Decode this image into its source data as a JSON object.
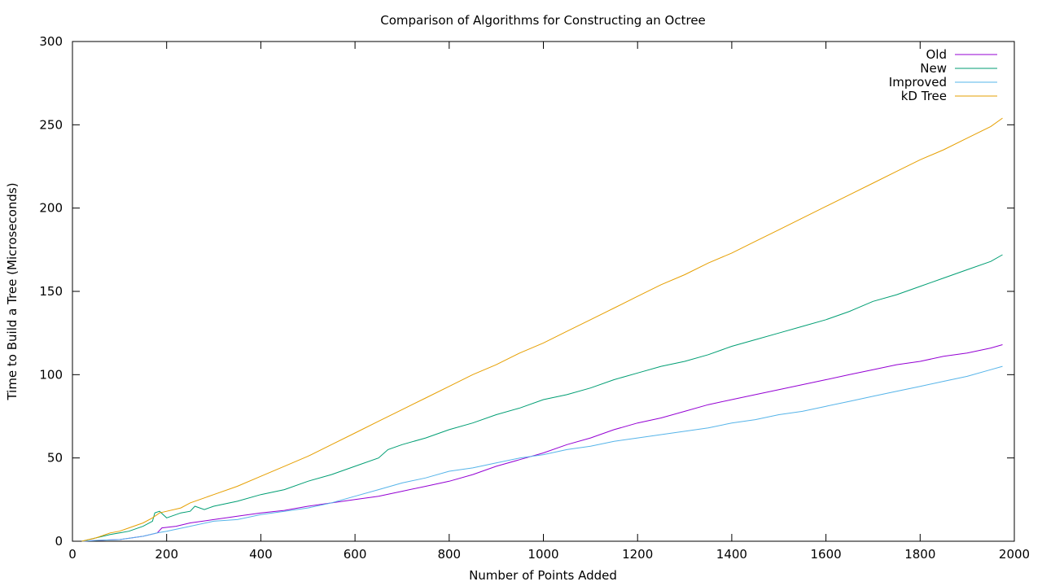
{
  "chart_data": {
    "type": "line",
    "title": "Comparison of Algorithms for Constructing an Octree",
    "xlabel": "Number of Points Added",
    "ylabel": "Time to Build a Tree (Microseconds)",
    "xlim": [
      0,
      2000
    ],
    "ylim": [
      0,
      300
    ],
    "xticks": [
      0,
      200,
      400,
      600,
      800,
      1000,
      1200,
      1400,
      1600,
      1800,
      2000
    ],
    "yticks": [
      0,
      50,
      100,
      150,
      200,
      250,
      300
    ],
    "grid": false,
    "legend_position": "top-right",
    "series": [
      {
        "name": "Old",
        "color": "#9400d3",
        "points": [
          [
            20,
            0
          ],
          [
            50,
            0.5
          ],
          [
            100,
            1
          ],
          [
            150,
            3
          ],
          [
            180,
            5
          ],
          [
            190,
            8
          ],
          [
            220,
            9
          ],
          [
            250,
            11
          ],
          [
            300,
            13
          ],
          [
            350,
            15
          ],
          [
            400,
            17
          ],
          [
            450,
            18.5
          ],
          [
            500,
            21
          ],
          [
            550,
            23
          ],
          [
            600,
            25
          ],
          [
            650,
            27
          ],
          [
            700,
            30
          ],
          [
            750,
            33
          ],
          [
            800,
            36
          ],
          [
            850,
            40
          ],
          [
            900,
            45
          ],
          [
            950,
            49
          ],
          [
            1000,
            53
          ],
          [
            1050,
            58
          ],
          [
            1100,
            62
          ],
          [
            1150,
            67
          ],
          [
            1200,
            71
          ],
          [
            1250,
            74
          ],
          [
            1300,
            78
          ],
          [
            1350,
            82
          ],
          [
            1400,
            85
          ],
          [
            1450,
            88
          ],
          [
            1500,
            91
          ],
          [
            1550,
            94
          ],
          [
            1600,
            97
          ],
          [
            1650,
            100
          ],
          [
            1700,
            103
          ],
          [
            1750,
            106
          ],
          [
            1800,
            108
          ],
          [
            1850,
            111
          ],
          [
            1900,
            113
          ],
          [
            1950,
            116
          ],
          [
            1975,
            118
          ]
        ]
      },
      {
        "name": "New",
        "color": "#009e73",
        "points": [
          [
            20,
            0
          ],
          [
            50,
            2
          ],
          [
            80,
            4
          ],
          [
            100,
            5
          ],
          [
            120,
            6
          ],
          [
            150,
            9
          ],
          [
            170,
            12
          ],
          [
            175,
            17
          ],
          [
            185,
            18
          ],
          [
            200,
            14
          ],
          [
            230,
            17
          ],
          [
            250,
            18
          ],
          [
            260,
            21
          ],
          [
            280,
            19
          ],
          [
            300,
            21
          ],
          [
            350,
            24
          ],
          [
            400,
            28
          ],
          [
            450,
            31
          ],
          [
            500,
            36
          ],
          [
            550,
            40
          ],
          [
            600,
            45
          ],
          [
            650,
            50
          ],
          [
            670,
            55
          ],
          [
            700,
            58
          ],
          [
            750,
            62
          ],
          [
            800,
            67
          ],
          [
            850,
            71
          ],
          [
            900,
            76
          ],
          [
            950,
            80
          ],
          [
            1000,
            85
          ],
          [
            1050,
            88
          ],
          [
            1100,
            92
          ],
          [
            1150,
            97
          ],
          [
            1200,
            101
          ],
          [
            1250,
            105
          ],
          [
            1300,
            108
          ],
          [
            1350,
            112
          ],
          [
            1400,
            117
          ],
          [
            1450,
            121
          ],
          [
            1500,
            125
          ],
          [
            1550,
            129
          ],
          [
            1600,
            133
          ],
          [
            1650,
            138
          ],
          [
            1700,
            144
          ],
          [
            1750,
            148
          ],
          [
            1800,
            153
          ],
          [
            1850,
            158
          ],
          [
            1900,
            163
          ],
          [
            1950,
            168
          ],
          [
            1975,
            172
          ]
        ]
      },
      {
        "name": "Improved",
        "color": "#56b4e9",
        "points": [
          [
            20,
            0
          ],
          [
            50,
            0.5
          ],
          [
            100,
            1
          ],
          [
            150,
            3
          ],
          [
            180,
            5
          ],
          [
            200,
            6
          ],
          [
            250,
            9
          ],
          [
            300,
            12
          ],
          [
            350,
            13
          ],
          [
            400,
            16
          ],
          [
            450,
            18
          ],
          [
            500,
            20
          ],
          [
            550,
            23
          ],
          [
            600,
            27
          ],
          [
            650,
            31
          ],
          [
            700,
            35
          ],
          [
            750,
            38
          ],
          [
            800,
            42
          ],
          [
            850,
            44
          ],
          [
            900,
            47
          ],
          [
            950,
            50
          ],
          [
            1000,
            52
          ],
          [
            1050,
            55
          ],
          [
            1100,
            57
          ],
          [
            1150,
            60
          ],
          [
            1200,
            62
          ],
          [
            1250,
            64
          ],
          [
            1300,
            66
          ],
          [
            1350,
            68
          ],
          [
            1400,
            71
          ],
          [
            1450,
            73
          ],
          [
            1500,
            76
          ],
          [
            1550,
            78
          ],
          [
            1600,
            81
          ],
          [
            1650,
            84
          ],
          [
            1700,
            87
          ],
          [
            1750,
            90
          ],
          [
            1800,
            93
          ],
          [
            1850,
            96
          ],
          [
            1900,
            99
          ],
          [
            1950,
            103
          ],
          [
            1975,
            105
          ]
        ]
      },
      {
        "name": "kD Tree",
        "color": "#e69f00",
        "points": [
          [
            20,
            0
          ],
          [
            50,
            2
          ],
          [
            80,
            5
          ],
          [
            100,
            6
          ],
          [
            120,
            8
          ],
          [
            150,
            11
          ],
          [
            170,
            14
          ],
          [
            185,
            17
          ],
          [
            200,
            18
          ],
          [
            230,
            20
          ],
          [
            250,
            23
          ],
          [
            300,
            28
          ],
          [
            350,
            33
          ],
          [
            400,
            39
          ],
          [
            450,
            45
          ],
          [
            500,
            51
          ],
          [
            550,
            58
          ],
          [
            600,
            65
          ],
          [
            650,
            72
          ],
          [
            700,
            79
          ],
          [
            750,
            86
          ],
          [
            800,
            93
          ],
          [
            850,
            100
          ],
          [
            900,
            106
          ],
          [
            950,
            113
          ],
          [
            1000,
            119
          ],
          [
            1050,
            126
          ],
          [
            1100,
            133
          ],
          [
            1150,
            140
          ],
          [
            1200,
            147
          ],
          [
            1250,
            154
          ],
          [
            1300,
            160
          ],
          [
            1350,
            167
          ],
          [
            1400,
            173
          ],
          [
            1450,
            180
          ],
          [
            1500,
            187
          ],
          [
            1550,
            194
          ],
          [
            1600,
            201
          ],
          [
            1650,
            208
          ],
          [
            1700,
            215
          ],
          [
            1750,
            222
          ],
          [
            1800,
            229
          ],
          [
            1850,
            235
          ],
          [
            1900,
            242
          ],
          [
            1950,
            249
          ],
          [
            1975,
            254
          ]
        ]
      }
    ]
  }
}
